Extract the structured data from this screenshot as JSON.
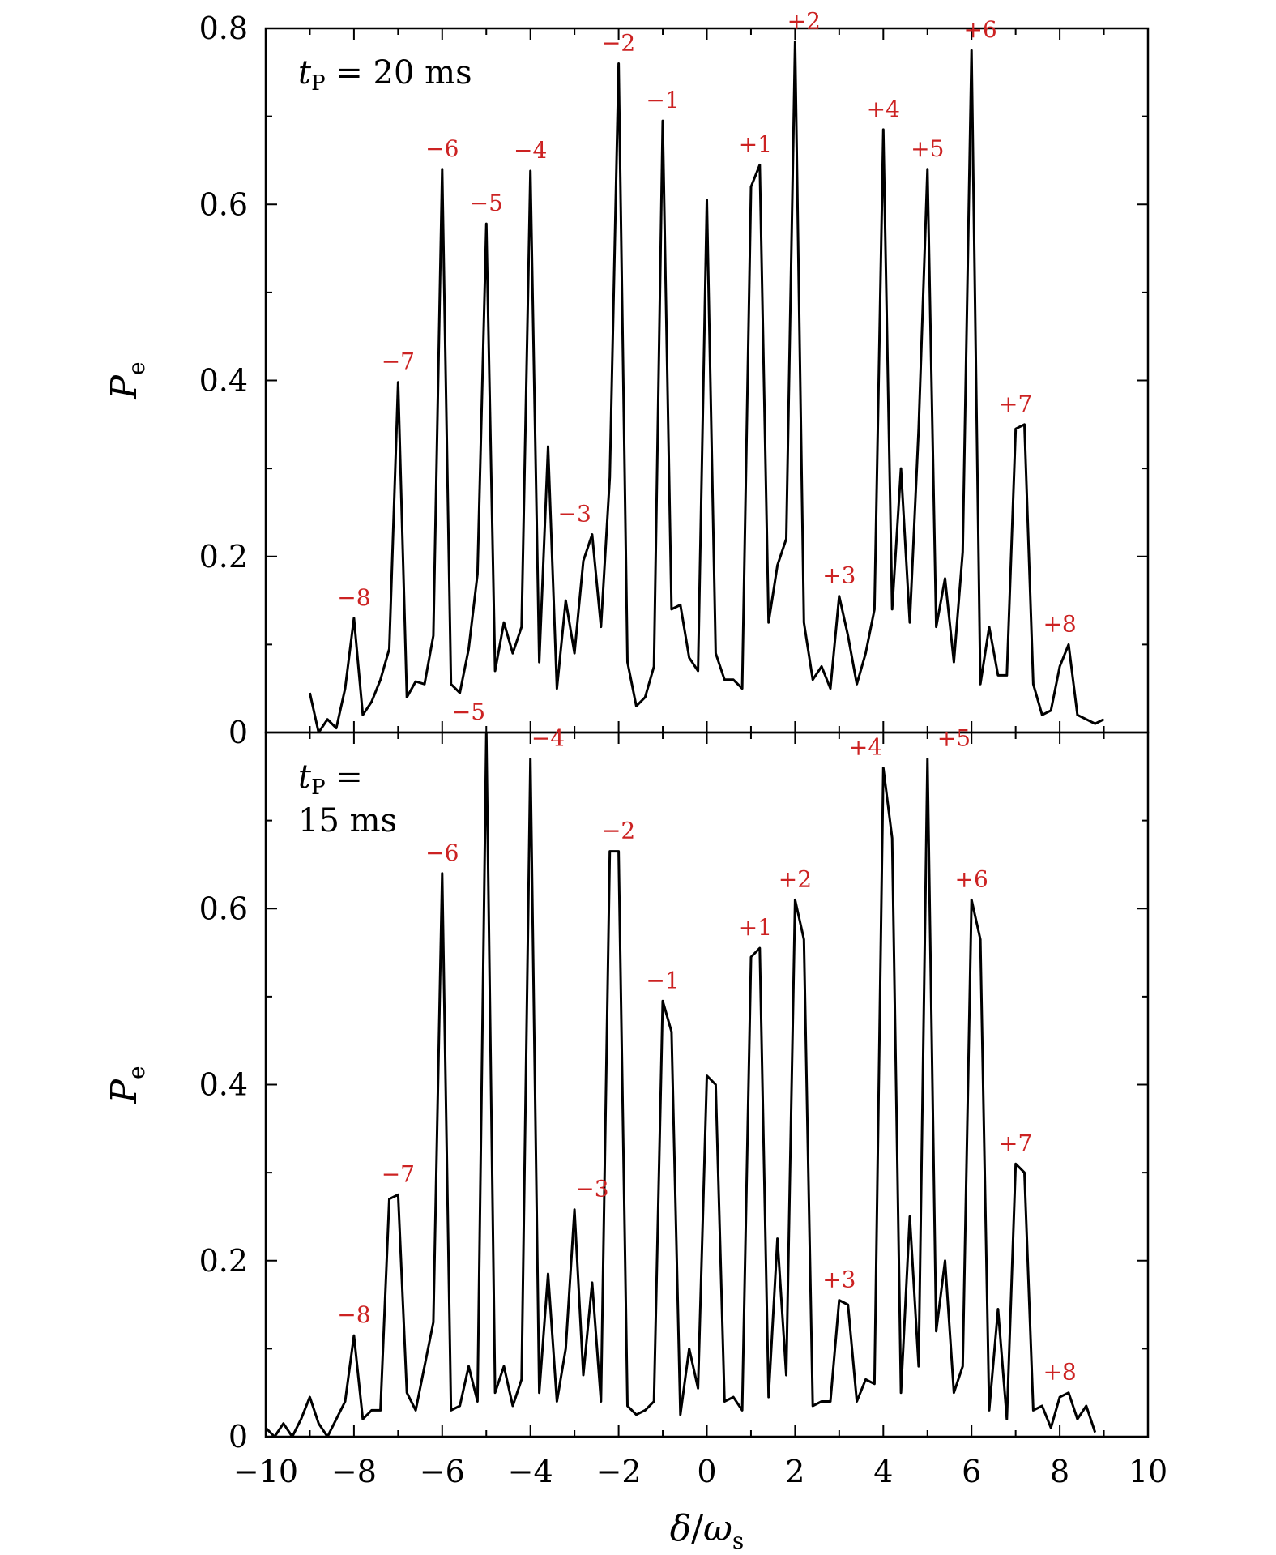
{
  "chart_data": [
    {
      "type": "line",
      "panel_label": "t_P = 20 ms",
      "panel_label_parts": {
        "sym": "t",
        "sub": "P",
        "rest": " = 20  ms"
      },
      "ylabel": {
        "sym": "P",
        "sub": "e"
      },
      "xlim": [
        -10,
        10
      ],
      "ylim": [
        0,
        0.8
      ],
      "yticks": [
        {
          "value": 0,
          "label": "0"
        },
        {
          "value": 0.2,
          "label": "0.2"
        },
        {
          "value": 0.4,
          "label": "0.4"
        },
        {
          "value": 0.6,
          "label": "0.6"
        },
        {
          "value": 0.8,
          "label": "0.8"
        }
      ],
      "x": [
        -9.0,
        -8.8,
        -8.6,
        -8.4,
        -8.2,
        -8.0,
        -7.8,
        -7.6,
        -7.4,
        -7.2,
        -7.0,
        -6.8,
        -6.6,
        -6.4,
        -6.2,
        -6.0,
        -5.8,
        -5.6,
        -5.4,
        -5.2,
        -5.0,
        -4.8,
        -4.6,
        -4.4,
        -4.2,
        -4.0,
        -3.8,
        -3.6,
        -3.4,
        -3.2,
        -3.0,
        -2.8,
        -2.6,
        -2.4,
        -2.2,
        -2.0,
        -1.8,
        -1.6,
        -1.4,
        -1.2,
        -1.0,
        -0.8,
        -0.6,
        -0.4,
        -0.2,
        0.0,
        0.2,
        0.4,
        0.6,
        0.8,
        1.0,
        1.2,
        1.4,
        1.6,
        1.8,
        2.0,
        2.2,
        2.4,
        2.6,
        2.8,
        3.0,
        3.2,
        3.4,
        3.6,
        3.8,
        4.0,
        4.2,
        4.4,
        4.6,
        4.8,
        5.0,
        5.2,
        5.4,
        5.6,
        5.8,
        6.0,
        6.2,
        6.4,
        6.6,
        6.8,
        7.0,
        7.2,
        7.4,
        7.6,
        7.8,
        8.0,
        8.2,
        8.4,
        8.6,
        8.8,
        9.0
      ],
      "y": [
        0.045,
        0.0,
        0.015,
        0.005,
        0.05,
        0.13,
        0.02,
        0.035,
        0.06,
        0.095,
        0.398,
        0.04,
        0.058,
        0.055,
        0.11,
        0.64,
        0.055,
        0.045,
        0.095,
        0.18,
        0.578,
        0.07,
        0.125,
        0.09,
        0.12,
        0.638,
        0.08,
        0.325,
        0.05,
        0.15,
        0.09,
        0.195,
        0.225,
        0.12,
        0.29,
        0.76,
        0.08,
        0.03,
        0.04,
        0.075,
        0.695,
        0.14,
        0.145,
        0.085,
        0.07,
        0.605,
        0.09,
        0.06,
        0.06,
        0.05,
        0.62,
        0.645,
        0.125,
        0.19,
        0.22,
        0.785,
        0.125,
        0.06,
        0.075,
        0.05,
        0.155,
        0.11,
        0.055,
        0.09,
        0.14,
        0.685,
        0.14,
        0.3,
        0.125,
        0.345,
        0.64,
        0.12,
        0.175,
        0.08,
        0.205,
        0.775,
        0.055,
        0.12,
        0.065,
        0.065,
        0.345,
        0.35,
        0.055,
        0.02,
        0.025,
        0.075,
        0.1,
        0.02,
        0.015,
        0.01,
        0.015
      ],
      "annotations": [
        {
          "text": "−8",
          "x": -8.0,
          "y": 0.13
        },
        {
          "text": "−7",
          "x": -7.0,
          "y": 0.398
        },
        {
          "text": "−6",
          "x": -6.0,
          "y": 0.64
        },
        {
          "text": "−5",
          "x": -5.0,
          "y": 0.578
        },
        {
          "text": "−4",
          "x": -4.0,
          "y": 0.638
        },
        {
          "text": "−3",
          "x": -3.0,
          "y": 0.225
        },
        {
          "text": "−2",
          "x": -2.0,
          "y": 0.76
        },
        {
          "text": "−1",
          "x": -1.0,
          "y": 0.695
        },
        {
          "text": "+1",
          "x": 1.1,
          "y": 0.645
        },
        {
          "text": "+2",
          "x": 2.2,
          "y": 0.785
        },
        {
          "text": "+3",
          "x": 3.0,
          "y": 0.155
        },
        {
          "text": "+4",
          "x": 4.0,
          "y": 0.685
        },
        {
          "text": "+5",
          "x": 5.0,
          "y": 0.64
        },
        {
          "text": "+6",
          "x": 6.2,
          "y": 0.775
        },
        {
          "text": "+7",
          "x": 7.0,
          "y": 0.35
        },
        {
          "text": "+8",
          "x": 8.0,
          "y": 0.1
        }
      ]
    },
    {
      "type": "line",
      "panel_label": "t_P = 15 ms",
      "panel_label_parts": {
        "sym": "t",
        "sub": "P",
        "rest": " =",
        "line2": "15  ms"
      },
      "ylabel": {
        "sym": "P",
        "sub": "e"
      },
      "xlabel": {
        "sym": "δ",
        "slash": "/",
        "sym2": "ω",
        "sub": "s"
      },
      "xlim": [
        -10,
        10
      ],
      "ylim": [
        0,
        0.8
      ],
      "yticks": [
        {
          "value": 0,
          "label": "0"
        },
        {
          "value": 0.2,
          "label": "0.2"
        },
        {
          "value": 0.4,
          "label": "0.4"
        },
        {
          "value": 0.6,
          "label": "0.6"
        }
      ],
      "xticks": [
        {
          "value": -10,
          "label": "−10"
        },
        {
          "value": -8,
          "label": "−8"
        },
        {
          "value": -6,
          "label": "−6"
        },
        {
          "value": -4,
          "label": "−4"
        },
        {
          "value": -2,
          "label": "−2"
        },
        {
          "value": 0,
          "label": "0"
        },
        {
          "value": 2,
          "label": "2"
        },
        {
          "value": 4,
          "label": "4"
        },
        {
          "value": 6,
          "label": "6"
        },
        {
          "value": 8,
          "label": "8"
        },
        {
          "value": 10,
          "label": "10"
        }
      ],
      "x": [
        -10.0,
        -9.8,
        -9.6,
        -9.4,
        -9.2,
        -9.0,
        -8.8,
        -8.6,
        -8.4,
        -8.2,
        -8.0,
        -7.8,
        -7.6,
        -7.4,
        -7.2,
        -7.0,
        -6.8,
        -6.6,
        -6.4,
        -6.2,
        -6.0,
        -5.8,
        -5.6,
        -5.4,
        -5.2,
        -5.0,
        -4.8,
        -4.6,
        -4.4,
        -4.2,
        -4.0,
        -3.8,
        -3.6,
        -3.4,
        -3.2,
        -3.0,
        -2.8,
        -2.6,
        -2.4,
        -2.2,
        -2.0,
        -1.8,
        -1.6,
        -1.4,
        -1.2,
        -1.0,
        -0.8,
        -0.6,
        -0.4,
        -0.2,
        0.0,
        0.2,
        0.4,
        0.6,
        0.8,
        1.0,
        1.2,
        1.4,
        1.6,
        1.8,
        2.0,
        2.2,
        2.4,
        2.6,
        2.8,
        3.0,
        3.2,
        3.4,
        3.6,
        3.8,
        4.0,
        4.2,
        4.4,
        4.6,
        4.8,
        5.0,
        5.2,
        5.4,
        5.6,
        5.8,
        6.0,
        6.2,
        6.4,
        6.6,
        6.8,
        7.0,
        7.2,
        7.4,
        7.6,
        7.8,
        8.0,
        8.2,
        8.4,
        8.6,
        8.8
      ],
      "y": [
        0.01,
        0.0,
        0.015,
        0.0,
        0.02,
        0.045,
        0.015,
        0.0,
        0.02,
        0.04,
        0.115,
        0.02,
        0.03,
        0.03,
        0.27,
        0.275,
        0.05,
        0.03,
        0.08,
        0.13,
        0.64,
        0.03,
        0.035,
        0.08,
        0.04,
        0.8,
        0.05,
        0.08,
        0.035,
        0.065,
        0.77,
        0.05,
        0.185,
        0.04,
        0.1,
        0.258,
        0.07,
        0.175,
        0.04,
        0.665,
        0.665,
        0.035,
        0.025,
        0.03,
        0.04,
        0.495,
        0.46,
        0.025,
        0.1,
        0.055,
        0.41,
        0.4,
        0.04,
        0.045,
        0.03,
        0.545,
        0.555,
        0.045,
        0.225,
        0.07,
        0.61,
        0.565,
        0.035,
        0.04,
        0.04,
        0.155,
        0.15,
        0.04,
        0.065,
        0.06,
        0.76,
        0.68,
        0.05,
        0.25,
        0.08,
        0.77,
        0.12,
        0.2,
        0.05,
        0.08,
        0.61,
        0.565,
        0.03,
        0.145,
        0.02,
        0.31,
        0.3,
        0.03,
        0.035,
        0.01,
        0.045,
        0.05,
        0.02,
        0.035,
        0.005
      ],
      "annotations": [
        {
          "text": "−8",
          "x": -8.0,
          "y": 0.115
        },
        {
          "text": "−7",
          "x": -7.0,
          "y": 0.275
        },
        {
          "text": "−6",
          "x": -6.0,
          "y": 0.64
        },
        {
          "text": "−5",
          "x": -5.4,
          "y": 0.8
        },
        {
          "text": "−4",
          "x": -3.6,
          "y": 0.77
        },
        {
          "text": "−3",
          "x": -2.6,
          "y": 0.258
        },
        {
          "text": "−2",
          "x": -2.0,
          "y": 0.665
        },
        {
          "text": "−1",
          "x": -1.0,
          "y": 0.495
        },
        {
          "text": "+1",
          "x": 1.1,
          "y": 0.555
        },
        {
          "text": "+2",
          "x": 2.0,
          "y": 0.61
        },
        {
          "text": "+3",
          "x": 3.0,
          "y": 0.155
        },
        {
          "text": "+4",
          "x": 3.6,
          "y": 0.76
        },
        {
          "text": "+5",
          "x": 5.6,
          "y": 0.77
        },
        {
          "text": "+6",
          "x": 6.0,
          "y": 0.61
        },
        {
          "text": "+7",
          "x": 7.0,
          "y": 0.31
        },
        {
          "text": "+8",
          "x": 8.0,
          "y": 0.05
        }
      ]
    }
  ]
}
